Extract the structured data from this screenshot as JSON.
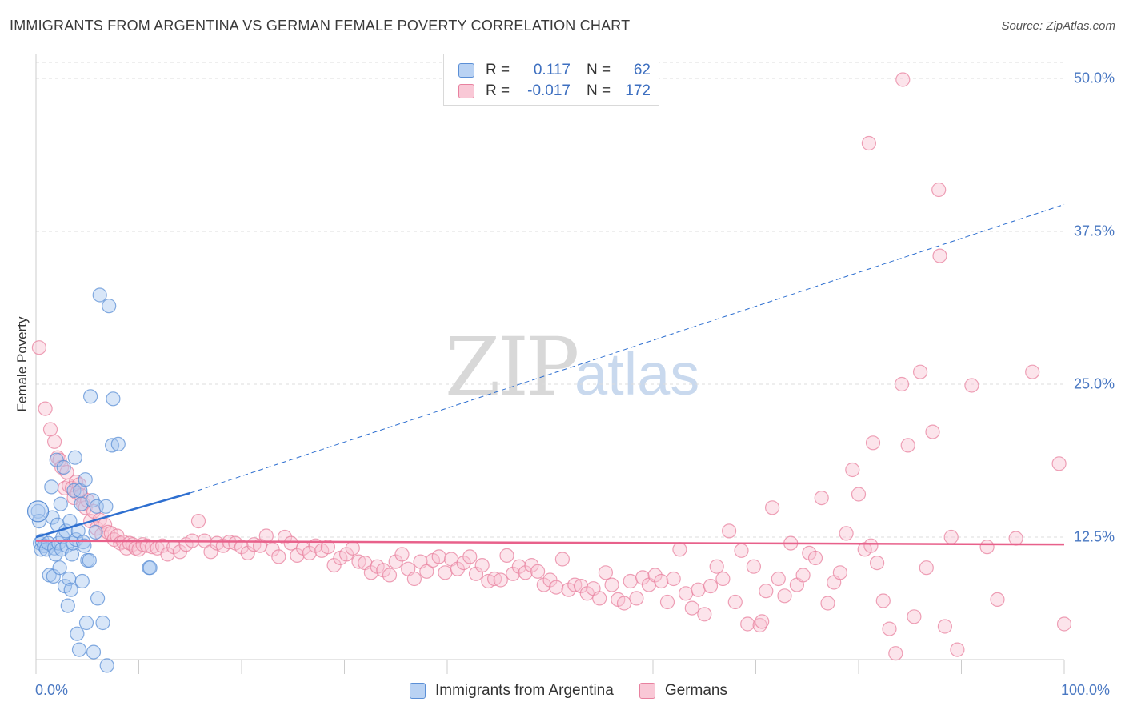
{
  "title": "IMMIGRANTS FROM ARGENTINA VS GERMAN FEMALE POVERTY CORRELATION CHART",
  "source": "Source: ZipAtlas.com",
  "watermark": {
    "zip": "ZIP",
    "atlas": "atlas"
  },
  "legend": {
    "rows": [
      {
        "r_label": "R =",
        "r_value": "0.117",
        "n_label": "N =",
        "n_value": "62",
        "color": "#9ec1ee",
        "border": "#5b8fd6"
      },
      {
        "r_label": "R =",
        "r_value": "-0.017",
        "n_label": "N =",
        "n_value": "172",
        "color": "#f6b8cc",
        "border": "#e8819f"
      }
    ]
  },
  "bottom_legend": {
    "blue": "Immigrants from Argentina",
    "pink": "Germans"
  },
  "chart_data": {
    "type": "scatter",
    "title": "IMMIGRANTS FROM ARGENTINA VS GERMAN FEMALE POVERTY CORRELATION CHART",
    "xlabel": "",
    "ylabel": "Female Poverty",
    "xlim": [
      0,
      100
    ],
    "ylim": [
      1,
      52.5
    ],
    "x_tick_labels": [
      "0.0%",
      "100.0%"
    ],
    "y_ticks": [
      12.5,
      25.0,
      37.5,
      50.0
    ],
    "y_tick_labels": [
      "12.5%",
      "25.0%",
      "37.5%",
      "50.0%"
    ],
    "grid": true,
    "colors": {
      "blue": "#5b8fd6",
      "blue_fill": "#a9c8f0",
      "blue_line": "#2e6fd0",
      "pink": "#e8819f",
      "pink_fill": "#f8c3d3",
      "pink_line": "#e8618b"
    },
    "series": [
      {
        "name": "Immigrants from Argentina",
        "points": [
          [
            0.2,
            14.6
          ],
          [
            0.3,
            13.8
          ],
          [
            0.4,
            12.0
          ],
          [
            0.5,
            11.5
          ],
          [
            0.6,
            12.2
          ],
          [
            0.8,
            11.8
          ],
          [
            1.0,
            11.5
          ],
          [
            1.2,
            12.0
          ],
          [
            1.3,
            9.4
          ],
          [
            1.5,
            16.6
          ],
          [
            1.6,
            14.1
          ],
          [
            1.7,
            9.3
          ],
          [
            1.8,
            11.6
          ],
          [
            1.9,
            11.1
          ],
          [
            2.0,
            18.8
          ],
          [
            2.1,
            13.5
          ],
          [
            2.2,
            12.0
          ],
          [
            2.3,
            10.0
          ],
          [
            2.4,
            15.2
          ],
          [
            2.5,
            11.5
          ],
          [
            2.6,
            12.5
          ],
          [
            2.7,
            18.2
          ],
          [
            2.8,
            8.5
          ],
          [
            2.9,
            13.0
          ],
          [
            3.0,
            11.8
          ],
          [
            3.1,
            6.9
          ],
          [
            3.2,
            9.1
          ],
          [
            3.3,
            13.8
          ],
          [
            3.4,
            8.2
          ],
          [
            3.5,
            11.1
          ],
          [
            3.6,
            12.0
          ],
          [
            3.7,
            16.3
          ],
          [
            3.8,
            19.0
          ],
          [
            3.9,
            12.3
          ],
          [
            4.0,
            4.6
          ],
          [
            4.1,
            13.0
          ],
          [
            4.2,
            3.3
          ],
          [
            4.3,
            16.3
          ],
          [
            4.4,
            15.2
          ],
          [
            4.5,
            8.9
          ],
          [
            4.6,
            12.1
          ],
          [
            4.7,
            11.8
          ],
          [
            4.8,
            17.2
          ],
          [
            4.9,
            5.5
          ],
          [
            5.0,
            10.6
          ],
          [
            5.2,
            10.6
          ],
          [
            5.3,
            24.0
          ],
          [
            5.5,
            15.5
          ],
          [
            5.6,
            3.1
          ],
          [
            5.8,
            12.9
          ],
          [
            5.9,
            15.0
          ],
          [
            6.0,
            7.5
          ],
          [
            6.2,
            32.3
          ],
          [
            6.5,
            5.5
          ],
          [
            6.8,
            15.0
          ],
          [
            6.9,
            2.0
          ],
          [
            7.1,
            31.4
          ],
          [
            7.4,
            20.0
          ],
          [
            7.5,
            23.8
          ],
          [
            8.0,
            20.1
          ],
          [
            11.0,
            10.0
          ],
          [
            11.1,
            10.0
          ]
        ]
      },
      {
        "name": "Germans",
        "points": [
          [
            0.3,
            28.0
          ],
          [
            0.9,
            23.0
          ],
          [
            1.4,
            21.3
          ],
          [
            1.8,
            20.3
          ],
          [
            2.1,
            19.0
          ],
          [
            2.3,
            18.8
          ],
          [
            2.5,
            18.2
          ],
          [
            2.8,
            16.5
          ],
          [
            3.0,
            17.8
          ],
          [
            3.2,
            16.7
          ],
          [
            3.5,
            16.5
          ],
          [
            3.7,
            15.7
          ],
          [
            3.9,
            17.0
          ],
          [
            4.0,
            16.1
          ],
          [
            4.2,
            16.8
          ],
          [
            4.4,
            15.9
          ],
          [
            4.6,
            15.2
          ],
          [
            4.8,
            14.9
          ],
          [
            5.0,
            15.5
          ],
          [
            5.3,
            13.8
          ],
          [
            5.6,
            14.6
          ],
          [
            5.9,
            13.2
          ],
          [
            6.2,
            13.9
          ],
          [
            6.4,
            12.7
          ],
          [
            6.7,
            13.5
          ],
          [
            7.0,
            12.9
          ],
          [
            7.3,
            12.8
          ],
          [
            7.6,
            12.3
          ],
          [
            7.9,
            12.6
          ],
          [
            8.2,
            12.0
          ],
          [
            8.5,
            12.1
          ],
          [
            8.8,
            11.6
          ],
          [
            9.1,
            12.0
          ],
          [
            9.4,
            11.9
          ],
          [
            9.7,
            11.6
          ],
          [
            10.0,
            11.5
          ],
          [
            10.4,
            11.9
          ],
          [
            10.8,
            11.8
          ],
          [
            11.3,
            11.7
          ],
          [
            11.8,
            11.6
          ],
          [
            12.3,
            11.8
          ],
          [
            12.8,
            11.1
          ],
          [
            13.4,
            11.7
          ],
          [
            14.0,
            11.3
          ],
          [
            14.6,
            11.9
          ],
          [
            15.2,
            12.2
          ],
          [
            15.8,
            13.8
          ],
          [
            16.4,
            12.2
          ],
          [
            17.0,
            11.3
          ],
          [
            17.6,
            12.0
          ],
          [
            18.2,
            11.8
          ],
          [
            18.8,
            12.1
          ],
          [
            19.4,
            12.0
          ],
          [
            20.0,
            11.7
          ],
          [
            20.6,
            11.2
          ],
          [
            21.2,
            11.9
          ],
          [
            21.8,
            11.8
          ],
          [
            22.4,
            12.6
          ],
          [
            23.0,
            11.5
          ],
          [
            23.6,
            10.9
          ],
          [
            24.2,
            12.5
          ],
          [
            24.8,
            12.0
          ],
          [
            25.4,
            11.0
          ],
          [
            26.0,
            11.6
          ],
          [
            26.6,
            11.2
          ],
          [
            27.2,
            11.8
          ],
          [
            27.8,
            11.4
          ],
          [
            28.4,
            11.7
          ],
          [
            29.0,
            10.2
          ],
          [
            29.6,
            10.8
          ],
          [
            30.2,
            11.1
          ],
          [
            30.8,
            11.6
          ],
          [
            31.4,
            10.5
          ],
          [
            32.0,
            10.4
          ],
          [
            32.6,
            9.6
          ],
          [
            33.2,
            10.1
          ],
          [
            33.8,
            9.8
          ],
          [
            34.4,
            9.4
          ],
          [
            35.0,
            10.5
          ],
          [
            35.6,
            11.1
          ],
          [
            36.2,
            9.9
          ],
          [
            36.8,
            9.1
          ],
          [
            37.4,
            10.5
          ],
          [
            38.0,
            9.7
          ],
          [
            38.6,
            10.6
          ],
          [
            39.2,
            10.9
          ],
          [
            39.8,
            9.6
          ],
          [
            40.4,
            10.7
          ],
          [
            41.0,
            9.9
          ],
          [
            41.6,
            10.4
          ],
          [
            42.2,
            10.9
          ],
          [
            42.8,
            9.5
          ],
          [
            43.4,
            10.2
          ],
          [
            44.0,
            8.9
          ],
          [
            44.6,
            9.1
          ],
          [
            45.2,
            9.0
          ],
          [
            45.8,
            11.0
          ],
          [
            46.4,
            9.5
          ],
          [
            47.0,
            10.1
          ],
          [
            47.6,
            9.6
          ],
          [
            48.2,
            10.2
          ],
          [
            48.8,
            9.7
          ],
          [
            49.4,
            8.6
          ],
          [
            50.0,
            9.0
          ],
          [
            50.6,
            8.4
          ],
          [
            51.2,
            10.7
          ],
          [
            51.8,
            8.2
          ],
          [
            52.4,
            8.6
          ],
          [
            53.0,
            8.5
          ],
          [
            53.6,
            7.9
          ],
          [
            54.2,
            8.3
          ],
          [
            54.8,
            7.5
          ],
          [
            55.4,
            9.6
          ],
          [
            56.0,
            8.6
          ],
          [
            56.6,
            7.4
          ],
          [
            57.2,
            7.1
          ],
          [
            57.8,
            8.9
          ],
          [
            58.4,
            7.5
          ],
          [
            59.0,
            9.2
          ],
          [
            59.6,
            8.6
          ],
          [
            60.2,
            9.4
          ],
          [
            60.8,
            8.9
          ],
          [
            61.4,
            7.2
          ],
          [
            62.0,
            9.1
          ],
          [
            62.6,
            11.5
          ],
          [
            63.2,
            7.9
          ],
          [
            63.8,
            6.7
          ],
          [
            64.4,
            8.2
          ],
          [
            65.0,
            6.2
          ],
          [
            65.6,
            8.5
          ],
          [
            66.2,
            10.1
          ],
          [
            66.8,
            9.1
          ],
          [
            67.4,
            13.0
          ],
          [
            68.0,
            7.2
          ],
          [
            68.6,
            11.4
          ],
          [
            69.2,
            5.4
          ],
          [
            69.8,
            10.1
          ],
          [
            70.4,
            5.3
          ],
          [
            70.6,
            5.6
          ],
          [
            71.0,
            8.1
          ],
          [
            71.6,
            14.9
          ],
          [
            72.2,
            9.1
          ],
          [
            72.8,
            7.7
          ],
          [
            73.4,
            12.0
          ],
          [
            74.0,
            8.6
          ],
          [
            74.6,
            9.4
          ],
          [
            75.2,
            11.2
          ],
          [
            75.8,
            10.8
          ],
          [
            76.4,
            15.7
          ],
          [
            77.0,
            7.1
          ],
          [
            77.6,
            8.8
          ],
          [
            78.2,
            9.6
          ],
          [
            78.8,
            12.8
          ],
          [
            79.4,
            18.0
          ],
          [
            80.0,
            16.0
          ],
          [
            80.6,
            11.5
          ],
          [
            81.2,
            11.8
          ],
          [
            81.8,
            10.4
          ],
          [
            82.4,
            7.3
          ],
          [
            83.0,
            5.0
          ],
          [
            83.6,
            3.0
          ],
          [
            84.2,
            25.0
          ],
          [
            84.8,
            20.0
          ],
          [
            85.4,
            6.0
          ],
          [
            86.0,
            26.0
          ],
          [
            86.6,
            10.0
          ],
          [
            87.2,
            21.1
          ],
          [
            87.8,
            40.9
          ],
          [
            88.4,
            5.2
          ],
          [
            89.0,
            12.5
          ],
          [
            89.6,
            3.3
          ],
          [
            95.3,
            12.4
          ],
          [
            96.9,
            26.0
          ],
          [
            99.5,
            18.5
          ],
          [
            100.0,
            5.4
          ],
          [
            81.4,
            20.2
          ],
          [
            81.0,
            44.7
          ],
          [
            84.3,
            49.9
          ],
          [
            87.9,
            35.5
          ],
          [
            91.0,
            24.9
          ],
          [
            92.5,
            11.7
          ],
          [
            93.5,
            7.4
          ]
        ]
      }
    ],
    "trend_lines": [
      {
        "series": "Immigrants from Argentina",
        "solid": [
          [
            0,
            12.5
          ],
          [
            15,
            16.1
          ]
        ],
        "dashed": [
          [
            15,
            16.1
          ],
          [
            100,
            39.7
          ]
        ]
      },
      {
        "series": "Germans",
        "solid": [
          [
            0,
            12.2
          ],
          [
            100,
            11.9
          ]
        ]
      }
    ]
  }
}
